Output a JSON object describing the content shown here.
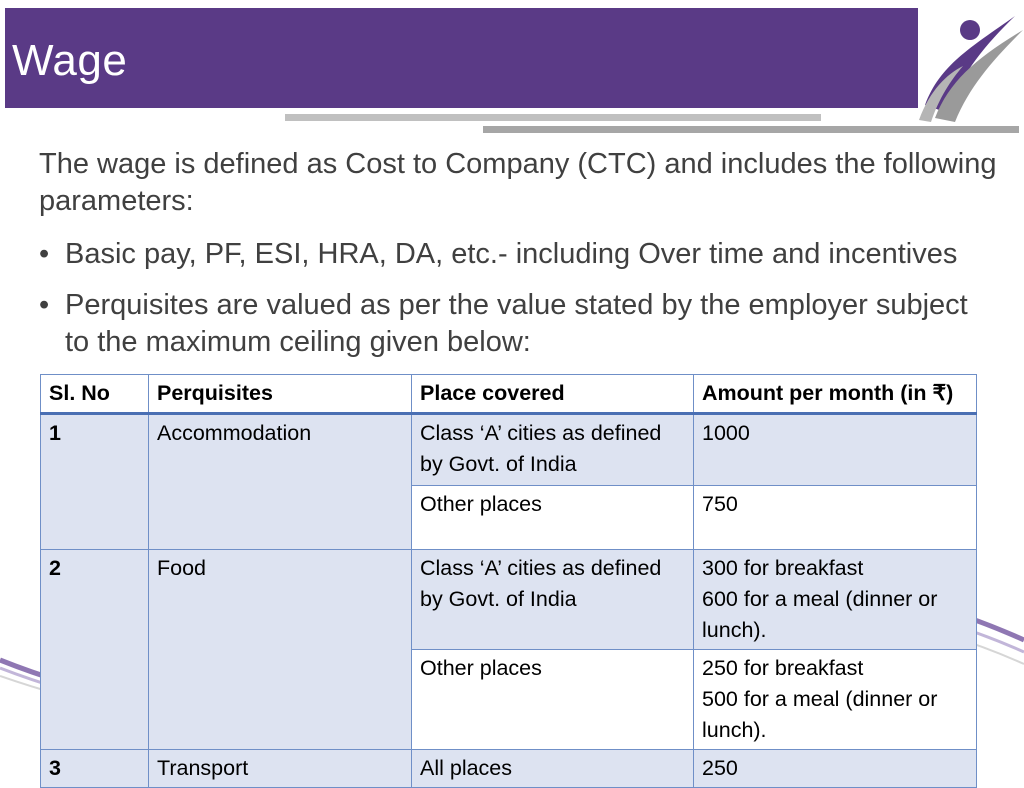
{
  "slide": {
    "title": "Wage",
    "intro": "The wage is defined as Cost to Company (CTC) and includes the following parameters:",
    "bullet_char": "•",
    "bullets": [
      "Basic pay, PF, ESI, HRA, DA, etc.- including Over time and incentives",
      "Perquisites are valued as per the value stated by the employer subject to the maximum ceiling given below:"
    ]
  },
  "table": {
    "headers": [
      "Sl. No",
      "Perquisites",
      "Place covered",
      "Amount per month (in ₹)"
    ],
    "rows": [
      {
        "sl": "1",
        "perq": "Accommodation",
        "place": "Class ‘A’ cities as defined by Govt. of India",
        "amount": "1000"
      },
      {
        "place": "Other places",
        "amount": "750"
      },
      {
        "sl": "2",
        "perq": "Food",
        "place": "Class ‘A’ cities as defined by Govt. of India",
        "amount_lines": [
          "300 for breakfast",
          "600 for a meal (dinner or lunch)."
        ]
      },
      {
        "place": "Other places",
        "amount_lines": [
          "250 for breakfast",
          "500 for a meal (dinner or lunch)."
        ]
      },
      {
        "sl": "3",
        "perq": "Transport",
        "place": "All places",
        "amount": "250"
      }
    ]
  },
  "colors": {
    "title_bar": "#5a3a86",
    "row_alt": "#dde3f1",
    "border": "#6f8fc7"
  }
}
